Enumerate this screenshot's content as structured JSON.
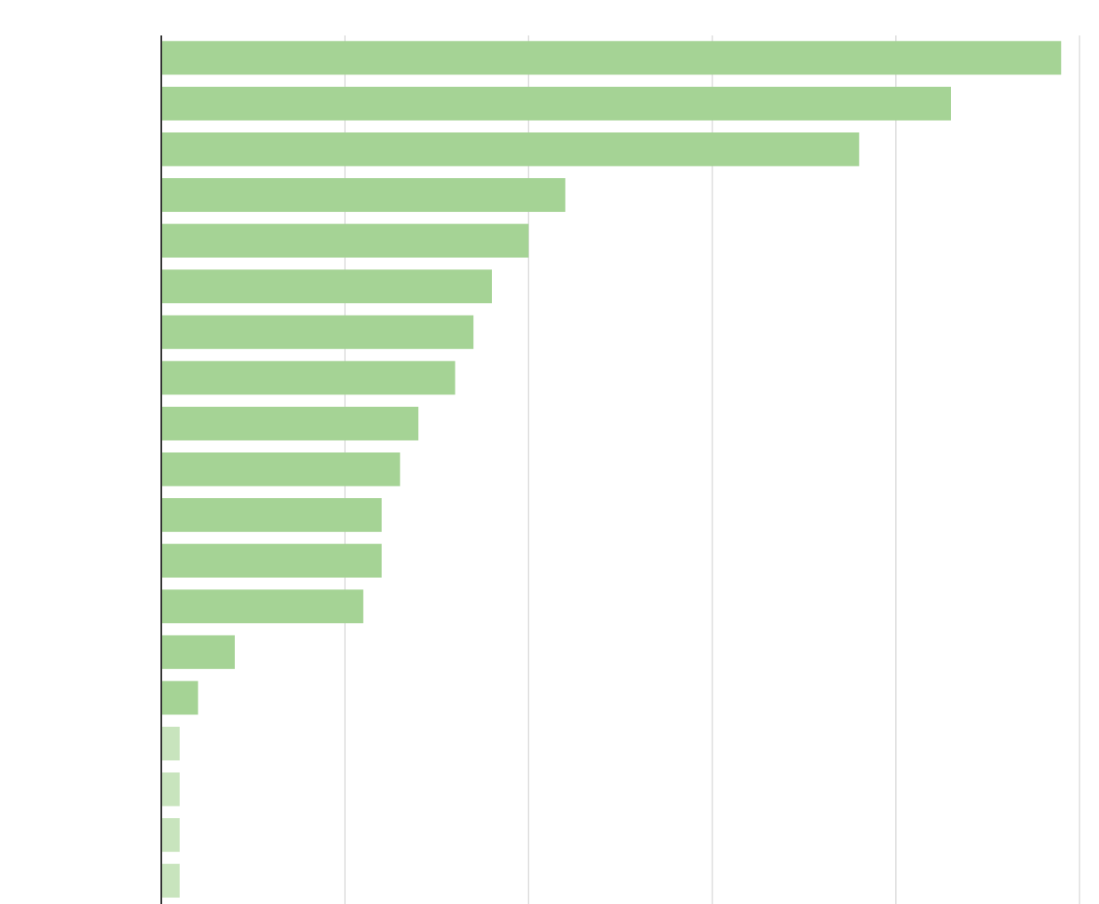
{
  "chart_data": {
    "type": "bar",
    "orientation": "horizontal",
    "categories": [
      null,
      null,
      null,
      null,
      null,
      null,
      null,
      null,
      null,
      null,
      null,
      null,
      null,
      null,
      null,
      null,
      null,
      null,
      null
    ],
    "values": [
      49,
      43,
      38,
      22,
      20,
      18,
      17,
      16,
      14,
      13,
      12,
      12,
      11,
      4,
      2,
      1,
      1,
      1,
      1
    ],
    "colors": [
      "#a5d395",
      "#a5d395",
      "#a5d395",
      "#a5d395",
      "#a5d395",
      "#a5d395",
      "#a5d395",
      "#a5d395",
      "#a5d395",
      "#a5d395",
      "#a5d395",
      "#a5d395",
      "#a5d395",
      "#a5d395",
      "#a5d395",
      "#c8e4bd",
      "#c8e4bd",
      "#c8e4bd",
      "#c8e4bd"
    ],
    "xlim": [
      0,
      50
    ],
    "xticks": [
      0,
      10,
      20,
      30,
      40,
      50
    ],
    "grid": true
  }
}
